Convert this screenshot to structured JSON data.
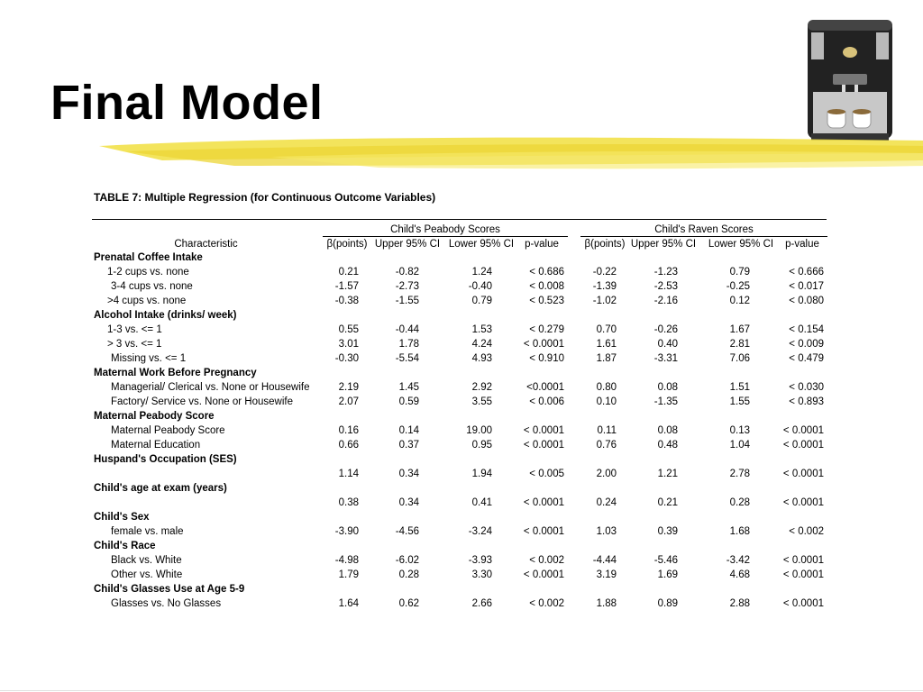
{
  "title": "Final Model",
  "table": {
    "caption": "TABLE 7:  Multiple Regression (for Continuous Outcome Variables)",
    "group_headers": {
      "peabody": "Child's Peabody Scores",
      "raven": "Child's Raven Scores"
    },
    "columns": [
      "Characteristic",
      "β(points)",
      "Upper 95% CI",
      "Lower 95% CI",
      "p-value",
      "β(points)",
      "Upper 95% CI",
      "Lower 95% CI",
      "p-value"
    ],
    "rows": [
      {
        "kind": "section",
        "label": "Prenatal Coffee Intake"
      },
      {
        "kind": "item",
        "label": "1-2 cups vs. none",
        "indent": 1,
        "values": [
          "0.21",
          "-0.82",
          "1.24",
          "< 0.686",
          "-0.22",
          "-1.23",
          "0.79",
          "< 0.666"
        ]
      },
      {
        "kind": "item",
        "label": "3-4 cups vs. none",
        "indent": 2,
        "values": [
          "-1.57",
          "-2.73",
          "-0.40",
          "< 0.008",
          "-1.39",
          "-2.53",
          "-0.25",
          "< 0.017"
        ]
      },
      {
        "kind": "item",
        "label": ">4 cups vs. none",
        "indent": 1,
        "values": [
          "-0.38",
          "-1.55",
          "0.79",
          "< 0.523",
          "-1.02",
          "-2.16",
          "0.12",
          "< 0.080"
        ]
      },
      {
        "kind": "section",
        "label": "Alcohol Intake (drinks/ week)"
      },
      {
        "kind": "item",
        "label": "1-3 vs. <= 1",
        "indent": 1,
        "values": [
          "0.55",
          "-0.44",
          "1.53",
          "< 0.279",
          "0.70",
          "-0.26",
          "1.67",
          "< 0.154"
        ]
      },
      {
        "kind": "item",
        "label": "> 3 vs. <= 1",
        "indent": 1,
        "values": [
          "3.01",
          "1.78",
          "4.24",
          "< 0.0001",
          "1.61",
          "0.40",
          "2.81",
          "< 0.009"
        ]
      },
      {
        "kind": "item",
        "label": "Missing vs. <= 1",
        "indent": 2,
        "values": [
          "-0.30",
          "-5.54",
          "4.93",
          "< 0.910",
          "1.87",
          "-3.31",
          "7.06",
          "< 0.479"
        ]
      },
      {
        "kind": "section",
        "label": "Maternal Work Before Pregnancy"
      },
      {
        "kind": "item",
        "label": "Managerial/ Clerical vs. None or Housewife",
        "indent": 2,
        "values": [
          "2.19",
          "1.45",
          "2.92",
          "<0.0001",
          "0.80",
          "0.08",
          "1.51",
          "< 0.030"
        ]
      },
      {
        "kind": "item",
        "label": "Factory/ Service vs. None or Housewife",
        "indent": 2,
        "values": [
          "2.07",
          "0.59",
          "3.55",
          "< 0.006",
          "0.10",
          "-1.35",
          "1.55",
          "< 0.893"
        ]
      },
      {
        "kind": "section",
        "label": "Maternal Peabody Score"
      },
      {
        "kind": "item",
        "label": "Maternal Peabody Score",
        "indent": 2,
        "values": [
          "0.16",
          "0.14",
          "19.00",
          "< 0.0001",
          "0.11",
          "0.08",
          "0.13",
          "< 0.0001"
        ]
      },
      {
        "kind": "item",
        "label": "Maternal Education",
        "indent": 2,
        "values": [
          "0.66",
          "0.37",
          "0.95",
          "< 0.0001",
          "0.76",
          "0.48",
          "1.04",
          "< 0.0001"
        ]
      },
      {
        "kind": "section",
        "label": "Huspand's Occupation (SES)"
      },
      {
        "kind": "item",
        "label": "",
        "indent": 2,
        "values": [
          "1.14",
          "0.34",
          "1.94",
          "< 0.005",
          "2.00",
          "1.21",
          "2.78",
          "< 0.0001"
        ]
      },
      {
        "kind": "section",
        "label": "Child's age at exam (years)"
      },
      {
        "kind": "item",
        "label": "",
        "indent": 2,
        "values": [
          "0.38",
          "0.34",
          "0.41",
          "< 0.0001",
          "0.24",
          "0.21",
          "0.28",
          "< 0.0001"
        ]
      },
      {
        "kind": "section",
        "label": "Child's Sex"
      },
      {
        "kind": "item",
        "label": "female vs. male",
        "indent": 2,
        "values": [
          "-3.90",
          "-4.56",
          "-3.24",
          "< 0.0001",
          "1.03",
          "0.39",
          "1.68",
          "< 0.002"
        ]
      },
      {
        "kind": "section",
        "label": "Child's Race"
      },
      {
        "kind": "item",
        "label": "Black vs. White",
        "indent": 2,
        "values": [
          "-4.98",
          "-6.02",
          "-3.93",
          "< 0.002",
          "-4.44",
          "-5.46",
          "-3.42",
          "< 0.0001"
        ]
      },
      {
        "kind": "item",
        "label": "Other vs. White",
        "indent": 2,
        "values": [
          "1.79",
          "0.28",
          "3.30",
          "< 0.0001",
          "3.19",
          "1.69",
          "4.68",
          "< 0.0001"
        ]
      },
      {
        "kind": "section",
        "label": "Child's Glasses Use at Age 5-9"
      },
      {
        "kind": "item",
        "label": "Glasses vs. No Glasses",
        "indent": 2,
        "values": [
          "1.64",
          "0.62",
          "2.66",
          "< 0.002",
          "1.88",
          "0.89",
          "2.88",
          "< 0.0001"
        ]
      }
    ]
  },
  "decor": {
    "machine_icon": "coffee-machine-icon",
    "brush_icon": "brush-stroke-icon",
    "brush_color": "#f2e14a",
    "machine_color": "#1c1c1c"
  }
}
